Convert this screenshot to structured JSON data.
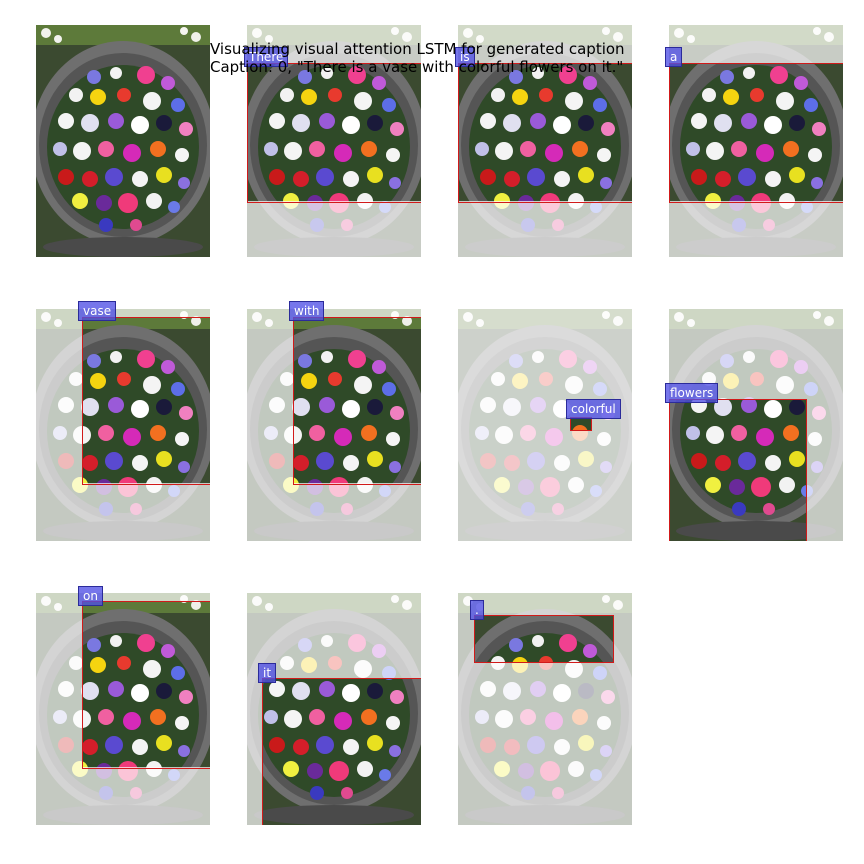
{
  "figure": {
    "title_line1": "Visualizing visual attention LSTM for generated caption",
    "title_line2": "Caption: 0, \"There is a vase with colorful flowers on it.\""
  },
  "colors": {
    "box": "#d11a1a",
    "tag_fill": "#5050e6",
    "pot": "#6b6b6b",
    "foliage": "#3f6e2e"
  },
  "words": [
    {
      "text": "There"
    },
    {
      "text": "is"
    },
    {
      "text": "a"
    },
    {
      "text": "vase"
    },
    {
      "text": "with"
    },
    {
      "text": "colorful"
    },
    {
      "text": "flowers"
    },
    {
      "text": "on"
    },
    {
      "text": "it"
    },
    {
      "text": "."
    }
  ]
}
